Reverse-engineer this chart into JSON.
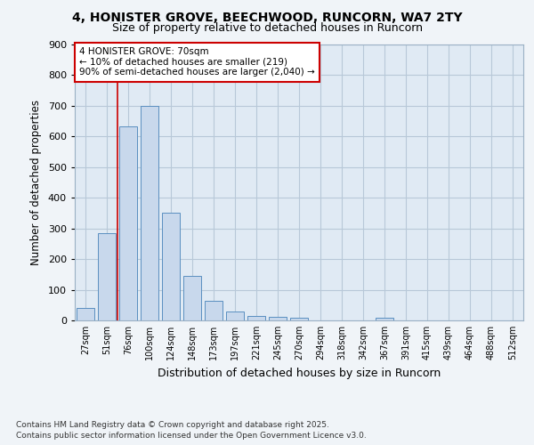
{
  "title_line1": "4, HONISTER GROVE, BEECHWOOD, RUNCORN, WA7 2TY",
  "title_line2": "Size of property relative to detached houses in Runcorn",
  "xlabel": "Distribution of detached houses by size in Runcorn",
  "ylabel": "Number of detached properties",
  "footer_line1": "Contains HM Land Registry data © Crown copyright and database right 2025.",
  "footer_line2": "Contains public sector information licensed under the Open Government Licence v3.0.",
  "categories": [
    "27sqm",
    "51sqm",
    "76sqm",
    "100sqm",
    "124sqm",
    "148sqm",
    "173sqm",
    "197sqm",
    "221sqm",
    "245sqm",
    "270sqm",
    "294sqm",
    "318sqm",
    "342sqm",
    "367sqm",
    "391sqm",
    "415sqm",
    "439sqm",
    "464sqm",
    "488sqm",
    "512sqm"
  ],
  "values": [
    42,
    285,
    632,
    700,
    350,
    145,
    65,
    28,
    15,
    12,
    10,
    0,
    0,
    0,
    8,
    0,
    0,
    0,
    0,
    0,
    0
  ],
  "bar_color": "#c8d8ec",
  "bar_edge_color": "#5a8fc0",
  "bar_edge_width": 0.7,
  "grid_color": "#b8c8d8",
  "background_color": "#f0f4f8",
  "plot_background_color": "#e0eaf4",
  "red_line_x": 1.5,
  "annotation_title": "4 HONISTER GROVE: 70sqm",
  "annotation_line1": "← 10% of detached houses are smaller (219)",
  "annotation_line2": "90% of semi-detached houses are larger (2,040) →",
  "annotation_box_color": "#ffffff",
  "annotation_box_edge_color": "#cc0000",
  "red_line_color": "#cc0000",
  "ylim": [
    0,
    900
  ],
  "yticks": [
    0,
    100,
    200,
    300,
    400,
    500,
    600,
    700,
    800,
    900
  ]
}
